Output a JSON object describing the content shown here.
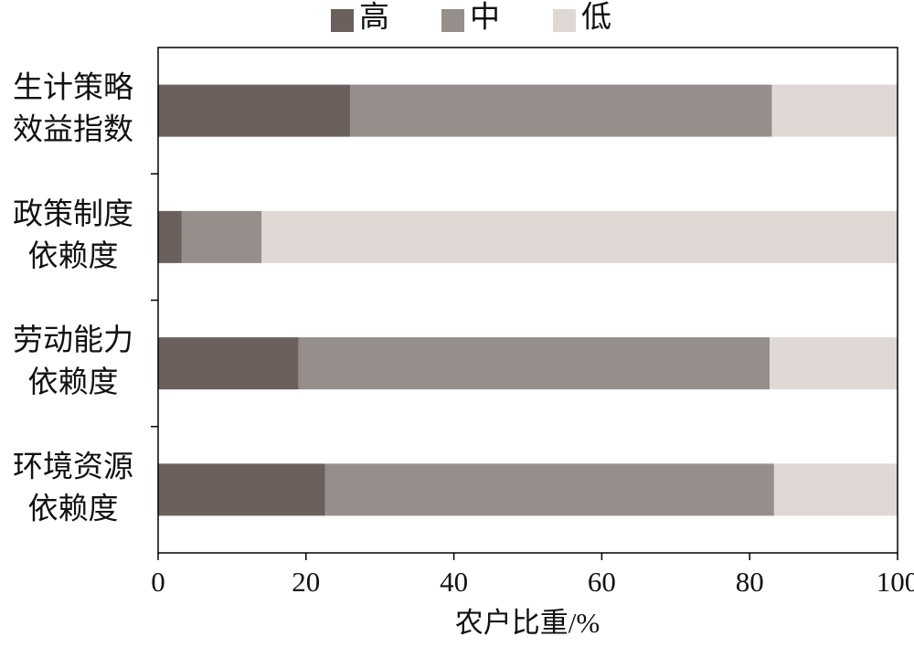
{
  "chart_data": {
    "type": "stacked-barh",
    "xlabel": "农户比重/%",
    "categories": [
      [
        "生计策略",
        "效益指数"
      ],
      [
        "政策制度",
        "依赖度"
      ],
      [
        "劳动能力",
        "依赖度"
      ],
      [
        "环境资源",
        "依赖度"
      ]
    ],
    "series": [
      {
        "name": "高",
        "color": "#6b605c",
        "values": [
          26,
          3.2,
          19,
          22.6
        ]
      },
      {
        "name": "中",
        "color": "#968e8b",
        "values": [
          57,
          10.8,
          63.7,
          60.7
        ]
      },
      {
        "name": "低",
        "color": "#e0d8d5",
        "values": [
          17,
          86,
          17.3,
          16.7
        ]
      }
    ],
    "xlim": [
      0,
      100
    ],
    "xticks": [
      0,
      20,
      40,
      60,
      80,
      100
    ],
    "legend": "top"
  }
}
